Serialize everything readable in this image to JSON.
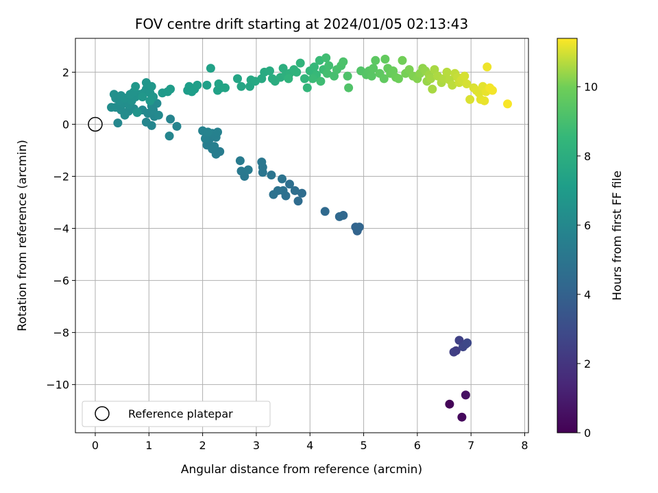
{
  "chart_data": {
    "type": "scatter",
    "title": "FOV centre drift starting at 2024/01/05 02:13:43",
    "xlabel": "Angular distance from reference (arcmin)",
    "ylabel": "Rotation from reference (arcmin)",
    "xlim": [
      -0.37,
      8.07
    ],
    "ylim": [
      -11.85,
      3.3
    ],
    "xticks": [
      0,
      1,
      2,
      3,
      4,
      5,
      6,
      7,
      8
    ],
    "xtick_labels": [
      "0",
      "1",
      "2",
      "3",
      "4",
      "5",
      "6",
      "7",
      "8"
    ],
    "yticks": [
      2,
      0,
      -2,
      -4,
      -6,
      -8,
      -10
    ],
    "ytick_labels": [
      "2",
      "0",
      "−2",
      "−4",
      "−6",
      "−8",
      "−10"
    ],
    "grid": true,
    "colormap": "viridis",
    "colorbar": {
      "label": "Hours from first FF file",
      "range": [
        0,
        11.4
      ],
      "ticks": [
        0,
        2,
        4,
        6,
        8,
        10
      ],
      "tick_labels": [
        "0",
        "2",
        "4",
        "6",
        "8",
        "10"
      ]
    },
    "reference_point": {
      "x": 0,
      "y": 0,
      "label": "Reference platepar"
    },
    "legend": {
      "location": "lower-left",
      "entries": [
        "Reference platepar"
      ]
    },
    "points": [
      [
        6.6,
        -10.75,
        0.1
      ],
      [
        6.83,
        -11.25,
        0.3
      ],
      [
        6.9,
        -10.4,
        0.6
      ],
      [
        6.72,
        -8.7,
        2.3
      ],
      [
        6.78,
        -8.3,
        2.5
      ],
      [
        6.9,
        -8.45,
        2.6
      ],
      [
        6.85,
        -8.55,
        2.7
      ],
      [
        6.68,
        -8.75,
        2.4
      ],
      [
        6.93,
        -8.4,
        2.8
      ],
      [
        4.88,
        -4.1,
        4.1
      ],
      [
        4.85,
        -3.95,
        4.15
      ],
      [
        4.92,
        -3.95,
        4.2
      ],
      [
        4.62,
        -3.5,
        4.3
      ],
      [
        4.55,
        -3.55,
        4.35
      ],
      [
        4.28,
        -3.35,
        4.4
      ],
      [
        3.78,
        -2.95,
        4.5
      ],
      [
        3.85,
        -2.65,
        4.55
      ],
      [
        3.72,
        -2.55,
        4.6
      ],
      [
        3.62,
        -2.3,
        4.65
      ],
      [
        3.55,
        -2.75,
        4.7
      ],
      [
        3.5,
        -2.55,
        4.75
      ],
      [
        3.4,
        -2.55,
        4.8
      ],
      [
        3.32,
        -2.7,
        4.85
      ],
      [
        3.48,
        -2.1,
        4.9
      ],
      [
        3.28,
        -1.95,
        4.95
      ],
      [
        3.12,
        -1.85,
        5.0
      ],
      [
        3.12,
        -1.65,
        5.05
      ],
      [
        3.1,
        -1.45,
        5.1
      ],
      [
        2.78,
        -2.0,
        5.15
      ],
      [
        2.72,
        -1.8,
        5.2
      ],
      [
        2.85,
        -1.75,
        5.25
      ],
      [
        2.7,
        -1.4,
        5.3
      ],
      [
        2.32,
        -1.05,
        5.35
      ],
      [
        2.25,
        -1.15,
        5.4
      ],
      [
        2.18,
        -0.95,
        5.45
      ],
      [
        2.08,
        -0.8,
        5.5
      ],
      [
        2.12,
        -0.6,
        5.5
      ],
      [
        2.22,
        -0.85,
        5.55
      ],
      [
        2.25,
        -0.5,
        5.6
      ],
      [
        2.18,
        -0.35,
        5.6
      ],
      [
        2.28,
        -0.3,
        5.65
      ],
      [
        2.05,
        -0.55,
        5.65
      ],
      [
        2.0,
        -0.25,
        5.7
      ],
      [
        2.1,
        -0.3,
        5.75
      ],
      [
        1.4,
        0.2,
        5.8
      ],
      [
        1.52,
        -0.08,
        5.8
      ],
      [
        1.38,
        -0.45,
        5.85
      ],
      [
        1.05,
        -0.05,
        5.85
      ],
      [
        0.95,
        0.08,
        5.9
      ],
      [
        1.1,
        0.3,
        5.9
      ],
      [
        0.42,
        0.05,
        5.95
      ],
      [
        0.98,
        0.42,
        6.0
      ],
      [
        1.08,
        0.55,
        6.0
      ],
      [
        1.18,
        0.35,
        6.05
      ],
      [
        0.88,
        0.55,
        6.05
      ],
      [
        1.05,
        0.7,
        6.1
      ],
      [
        1.15,
        0.8,
        6.1
      ],
      [
        0.72,
        0.6,
        6.15
      ],
      [
        0.62,
        0.5,
        6.15
      ],
      [
        0.55,
        0.35,
        6.2
      ],
      [
        0.48,
        0.55,
        6.2
      ],
      [
        0.38,
        0.65,
        6.25
      ],
      [
        0.3,
        0.65,
        6.25
      ],
      [
        0.52,
        0.8,
        6.3
      ],
      [
        0.62,
        0.75,
        6.3
      ],
      [
        0.45,
        0.9,
        6.35
      ],
      [
        0.38,
        1.0,
        6.35
      ],
      [
        0.35,
        1.15,
        6.4
      ],
      [
        0.48,
        1.1,
        6.4
      ],
      [
        0.55,
        1.0,
        6.45
      ],
      [
        0.68,
        0.9,
        6.45
      ],
      [
        0.75,
        1.05,
        6.5
      ],
      [
        0.82,
        1.15,
        6.5
      ],
      [
        0.65,
        1.15,
        6.55
      ],
      [
        0.72,
        1.25,
        6.55
      ],
      [
        0.78,
        0.45,
        6.6
      ],
      [
        0.9,
        1.2,
        6.6
      ],
      [
        0.95,
        1.35,
        6.65
      ],
      [
        1.02,
        1.2,
        6.65
      ],
      [
        1.08,
        1.05,
        6.7
      ],
      [
        0.95,
        1.6,
        6.7
      ],
      [
        1.05,
        1.45,
        6.75
      ],
      [
        0.88,
        1.05,
        6.75
      ],
      [
        1.02,
        0.9,
        6.8
      ],
      [
        0.75,
        1.45,
        6.8
      ],
      [
        1.25,
        1.2,
        6.9
      ],
      [
        1.35,
        1.25,
        6.95
      ],
      [
        1.4,
        1.35,
        7.0
      ],
      [
        1.72,
        1.3,
        7.05
      ],
      [
        1.75,
        1.45,
        7.1
      ],
      [
        1.85,
        1.35,
        7.1
      ],
      [
        1.8,
        1.25,
        7.15
      ],
      [
        1.9,
        1.5,
        7.2
      ],
      [
        2.08,
        1.5,
        7.25
      ],
      [
        2.15,
        2.15,
        7.3
      ],
      [
        2.28,
        1.3,
        7.3
      ],
      [
        2.35,
        1.4,
        7.35
      ],
      [
        2.3,
        1.55,
        7.4
      ],
      [
        2.42,
        1.4,
        7.45
      ],
      [
        2.65,
        1.75,
        7.5
      ],
      [
        2.72,
        1.45,
        7.55
      ],
      [
        2.88,
        1.45,
        7.6
      ],
      [
        2.9,
        1.7,
        7.65
      ],
      [
        2.98,
        1.65,
        7.7
      ],
      [
        3.1,
        1.75,
        7.75
      ],
      [
        3.15,
        2.0,
        7.8
      ],
      [
        3.25,
        2.05,
        7.85
      ],
      [
        3.3,
        1.75,
        7.9
      ],
      [
        3.35,
        1.65,
        7.95
      ],
      [
        3.45,
        1.8,
        8.0
      ],
      [
        3.5,
        2.15,
        8.05
      ],
      [
        3.55,
        1.9,
        8.1
      ],
      [
        3.62,
        1.95,
        8.15
      ],
      [
        3.7,
        2.1,
        8.2
      ],
      [
        3.75,
        2.0,
        8.25
      ],
      [
        3.6,
        1.75,
        8.3
      ],
      [
        3.82,
        2.35,
        8.35
      ],
      [
        3.9,
        1.75,
        8.4
      ],
      [
        3.95,
        1.4,
        8.45
      ],
      [
        4.0,
        2.05,
        8.5
      ],
      [
        4.08,
        2.2,
        8.55
      ],
      [
        4.12,
        1.9,
        8.6
      ],
      [
        4.18,
        2.45,
        8.65
      ],
      [
        4.05,
        1.75,
        8.7
      ],
      [
        4.25,
        2.1,
        8.75
      ],
      [
        4.2,
        1.65,
        8.8
      ],
      [
        4.3,
        2.55,
        8.85
      ],
      [
        4.35,
        2.25,
        8.9
      ],
      [
        4.32,
        1.95,
        8.95
      ],
      [
        4.45,
        1.85,
        9.0
      ],
      [
        4.5,
        2.1,
        9.05
      ],
      [
        4.58,
        2.25,
        9.1
      ],
      [
        4.62,
        2.4,
        9.15
      ],
      [
        4.7,
        1.85,
        9.2
      ],
      [
        4.72,
        1.4,
        9.25
      ],
      [
        4.95,
        2.05,
        9.3
      ],
      [
        5.05,
        1.9,
        9.35
      ],
      [
        5.1,
        2.05,
        9.4
      ],
      [
        5.15,
        1.85,
        9.45
      ],
      [
        5.18,
        2.15,
        9.5
      ],
      [
        5.22,
        2.45,
        9.55
      ],
      [
        5.3,
        1.95,
        9.6
      ],
      [
        5.38,
        1.75,
        9.65
      ],
      [
        5.4,
        2.5,
        9.7
      ],
      [
        5.45,
        2.15,
        9.75
      ],
      [
        5.5,
        1.95,
        9.8
      ],
      [
        5.55,
        2.05,
        9.85
      ],
      [
        5.6,
        1.8,
        9.9
      ],
      [
        5.65,
        1.75,
        9.95
      ],
      [
        5.72,
        2.45,
        10.0
      ],
      [
        5.78,
        1.95,
        10.05
      ],
      [
        5.85,
        2.1,
        10.1
      ],
      [
        5.92,
        1.85,
        10.15
      ],
      [
        6.0,
        1.75,
        10.2
      ],
      [
        6.05,
        1.95,
        10.25
      ],
      [
        6.1,
        2.15,
        10.3
      ],
      [
        6.15,
        2.05,
        10.35
      ],
      [
        6.18,
        1.65,
        10.4
      ],
      [
        6.22,
        1.9,
        10.45
      ],
      [
        6.25,
        1.75,
        10.5
      ],
      [
        6.28,
        1.35,
        10.55
      ],
      [
        6.32,
        2.1,
        10.55
      ],
      [
        6.38,
        1.85,
        10.6
      ],
      [
        6.45,
        1.6,
        10.6
      ],
      [
        6.5,
        1.75,
        10.65
      ],
      [
        6.55,
        2.0,
        10.7
      ],
      [
        6.6,
        1.7,
        10.7
      ],
      [
        6.65,
        1.5,
        10.75
      ],
      [
        6.7,
        1.95,
        10.8
      ],
      [
        6.75,
        1.8,
        10.85
      ],
      [
        6.78,
        1.6,
        10.9
      ],
      [
        6.82,
        1.7,
        10.95
      ],
      [
        6.88,
        1.85,
        11.0
      ],
      [
        6.92,
        1.55,
        11.0
      ],
      [
        6.98,
        0.95,
        11.05
      ],
      [
        7.05,
        1.4,
        11.05
      ],
      [
        7.1,
        1.3,
        11.1
      ],
      [
        7.15,
        1.2,
        11.1
      ],
      [
        7.18,
        0.95,
        11.15
      ],
      [
        7.22,
        1.45,
        11.15
      ],
      [
        7.28,
        1.25,
        11.2
      ],
      [
        7.25,
        0.9,
        11.2
      ],
      [
        7.3,
        2.2,
        11.25
      ],
      [
        7.35,
        1.4,
        11.3
      ],
      [
        7.4,
        1.3,
        11.3
      ],
      [
        7.68,
        0.78,
        11.35
      ]
    ]
  }
}
